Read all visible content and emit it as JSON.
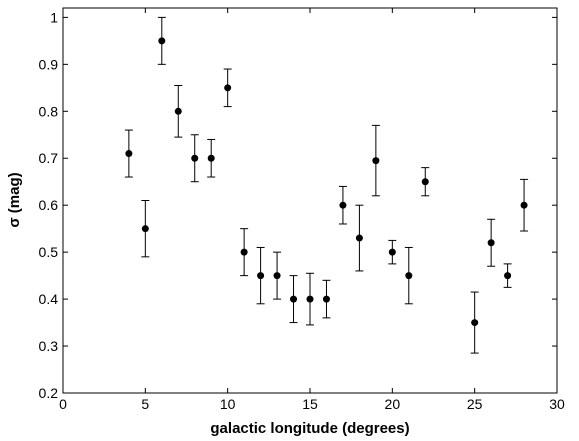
{
  "chart_data": {
    "type": "scatter",
    "xlabel": "galactic longitude (degrees)",
    "ylabel": "σ (mag)",
    "xlim": [
      0,
      30
    ],
    "ylim": [
      0.2,
      1.02
    ],
    "x_ticks": [
      0,
      5,
      10,
      15,
      20,
      25,
      30
    ],
    "x_tick_labels": [
      "0",
      "5",
      "10",
      "15",
      "20",
      "25",
      "30"
    ],
    "y_ticks": [
      0.2,
      0.3,
      0.4,
      0.5,
      0.6,
      0.7,
      0.8,
      0.9,
      1.0
    ],
    "y_tick_labels": [
      "0.2",
      "0.3",
      "0.4",
      "0.5",
      "0.6",
      "0.7",
      "0.8",
      "0.9",
      "1"
    ],
    "grid": false,
    "marker_color": "#000000",
    "points": [
      {
        "x": 4,
        "y": 0.71,
        "err_low": 0.66,
        "err_high": 0.76
      },
      {
        "x": 5,
        "y": 0.55,
        "err_low": 0.49,
        "err_high": 0.61
      },
      {
        "x": 6,
        "y": 0.95,
        "err_low": 0.9,
        "err_high": 1.0
      },
      {
        "x": 7,
        "y": 0.8,
        "err_low": 0.745,
        "err_high": 0.855
      },
      {
        "x": 8,
        "y": 0.7,
        "err_low": 0.65,
        "err_high": 0.75
      },
      {
        "x": 9,
        "y": 0.7,
        "err_low": 0.66,
        "err_high": 0.74
      },
      {
        "x": 10,
        "y": 0.85,
        "err_low": 0.81,
        "err_high": 0.89
      },
      {
        "x": 11,
        "y": 0.5,
        "err_low": 0.45,
        "err_high": 0.55
      },
      {
        "x": 12,
        "y": 0.45,
        "err_low": 0.39,
        "err_high": 0.51
      },
      {
        "x": 13,
        "y": 0.45,
        "err_low": 0.4,
        "err_high": 0.5
      },
      {
        "x": 14,
        "y": 0.4,
        "err_low": 0.35,
        "err_high": 0.45
      },
      {
        "x": 15,
        "y": 0.4,
        "err_low": 0.345,
        "err_high": 0.455
      },
      {
        "x": 16,
        "y": 0.4,
        "err_low": 0.36,
        "err_high": 0.44
      },
      {
        "x": 17,
        "y": 0.6,
        "err_low": 0.56,
        "err_high": 0.64
      },
      {
        "x": 18,
        "y": 0.53,
        "err_low": 0.46,
        "err_high": 0.6
      },
      {
        "x": 19,
        "y": 0.695,
        "err_low": 0.62,
        "err_high": 0.77
      },
      {
        "x": 20,
        "y": 0.5,
        "err_low": 0.475,
        "err_high": 0.525
      },
      {
        "x": 21,
        "y": 0.45,
        "err_low": 0.39,
        "err_high": 0.51
      },
      {
        "x": 22,
        "y": 0.65,
        "err_low": 0.62,
        "err_high": 0.68
      },
      {
        "x": 25,
        "y": 0.35,
        "err_low": 0.285,
        "err_high": 0.415
      },
      {
        "x": 26,
        "y": 0.52,
        "err_low": 0.47,
        "err_high": 0.57
      },
      {
        "x": 27,
        "y": 0.45,
        "err_low": 0.425,
        "err_high": 0.475
      },
      {
        "x": 28,
        "y": 0.6,
        "err_low": 0.545,
        "err_high": 0.655
      }
    ]
  }
}
